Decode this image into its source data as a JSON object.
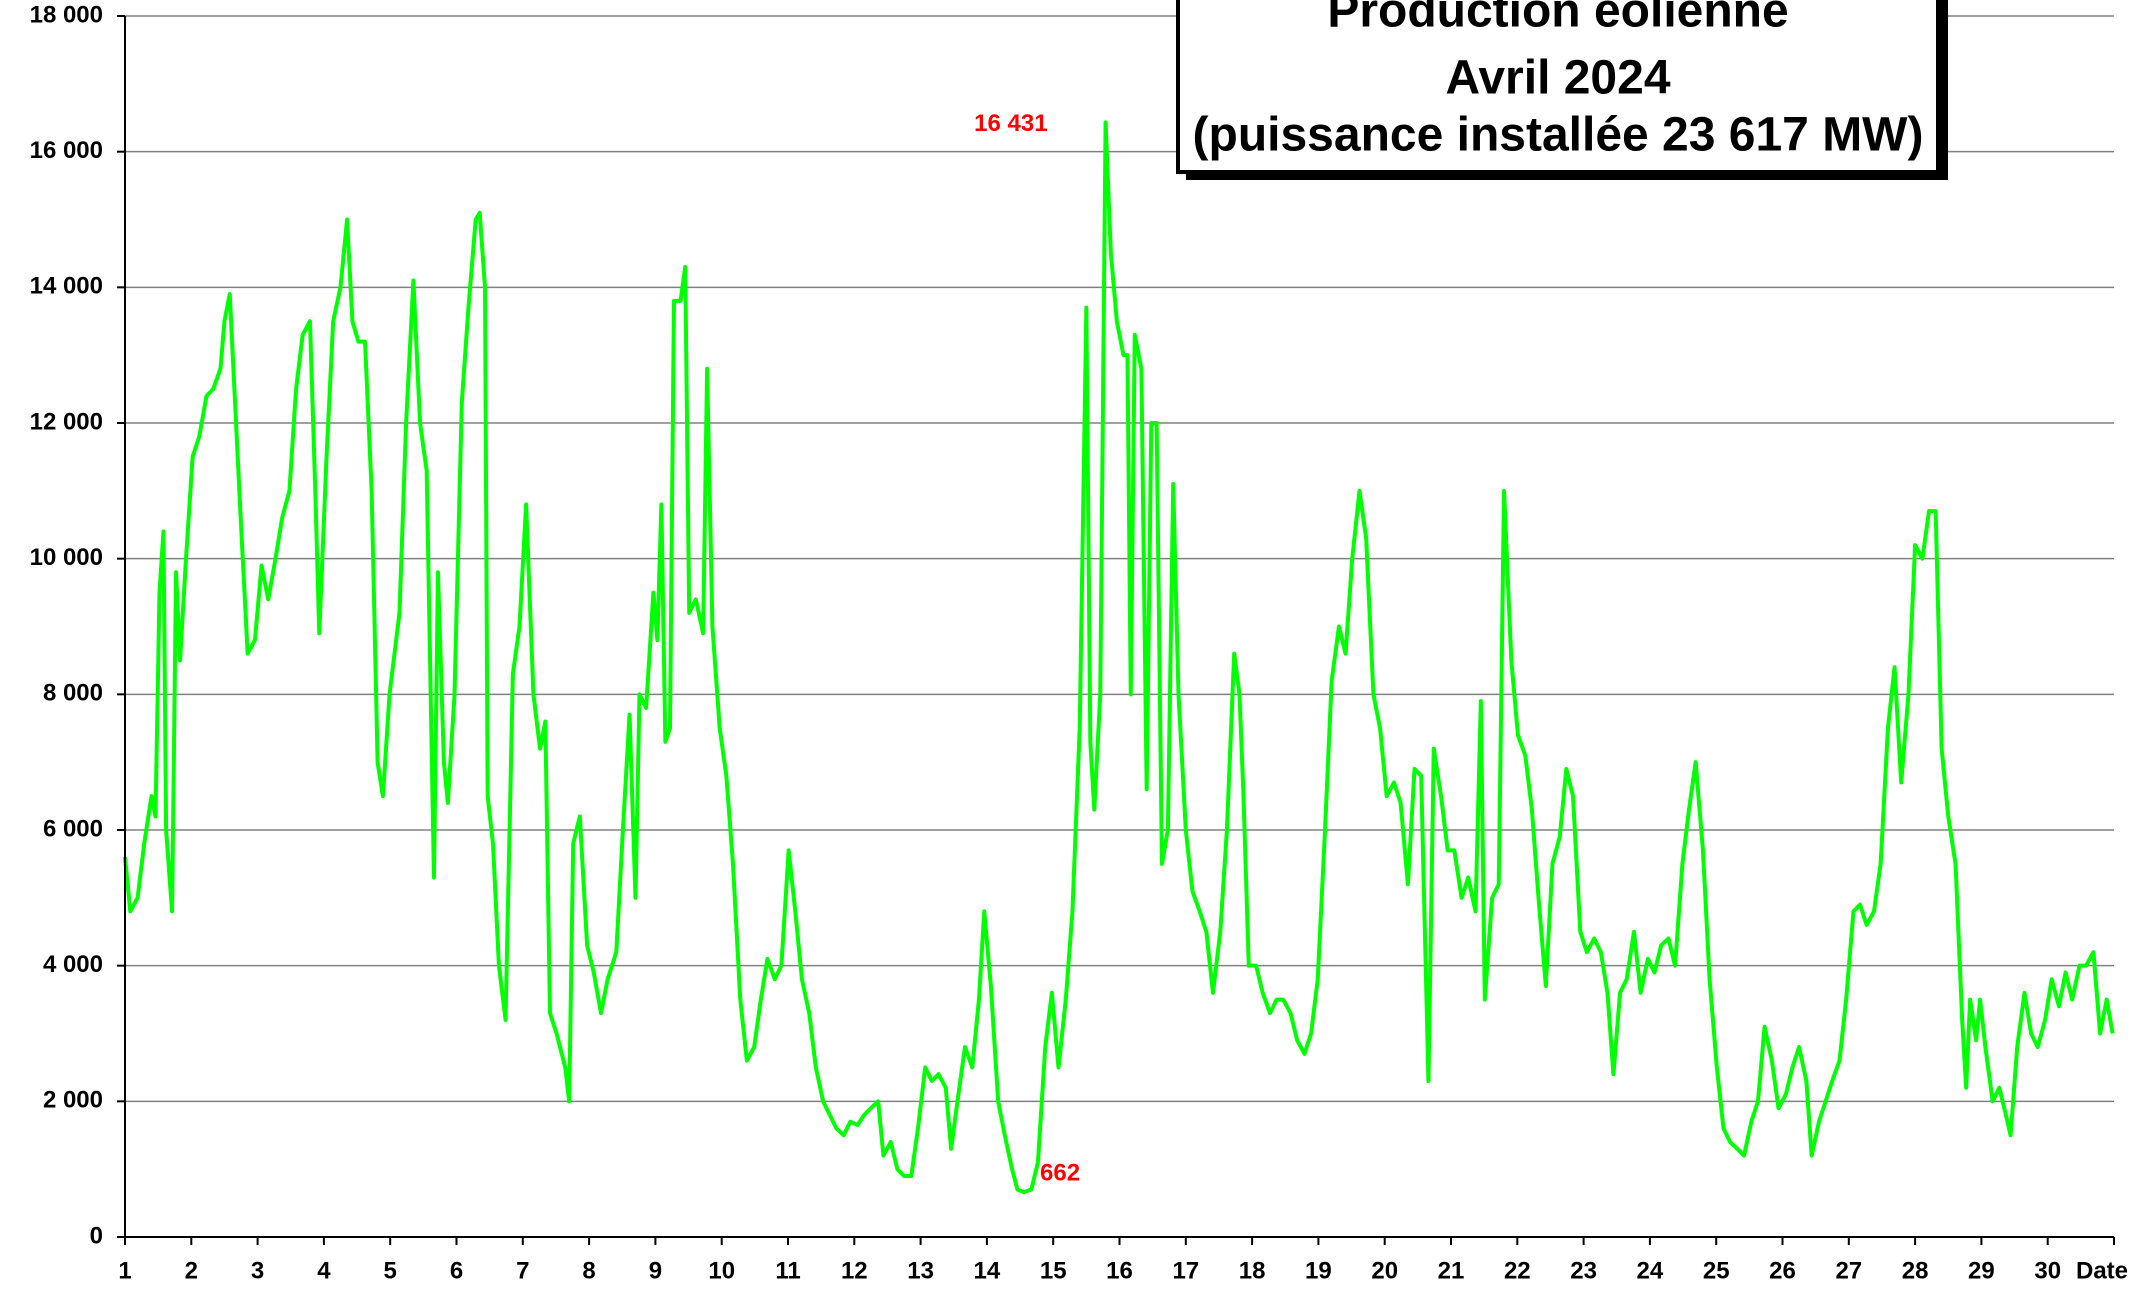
{
  "chart_data": {
    "type": "line",
    "title": [
      "Production éolienne",
      "Avril 2024",
      "(puissance installée 23 617 MW)"
    ],
    "x_label": "Date",
    "xlim": [
      1,
      31
    ],
    "xticks": [
      1,
      2,
      3,
      4,
      5,
      6,
      7,
      8,
      9,
      10,
      11,
      12,
      13,
      14,
      15,
      16,
      17,
      18,
      19,
      20,
      21,
      22,
      23,
      24,
      25,
      26,
      27,
      28,
      29,
      30
    ],
    "ylim": [
      0,
      18000
    ],
    "yticks": [
      {
        "value": 0,
        "label": "0"
      },
      {
        "value": 2000,
        "label": "2 000"
      },
      {
        "value": 4000,
        "label": "4 000"
      },
      {
        "value": 6000,
        "label": "6 000"
      },
      {
        "value": 8000,
        "label": "8 000"
      },
      {
        "value": 10000,
        "label": "10 000"
      },
      {
        "value": 12000,
        "label": "12 000"
      },
      {
        "value": 14000,
        "label": "14 000"
      },
      {
        "value": 16000,
        "label": "16 000"
      },
      {
        "value": 18000,
        "label": "18 000"
      }
    ],
    "grid": true,
    "annotations": [
      {
        "label": "16 431",
        "x": 15.79,
        "y": 16431
      },
      {
        "label": "662",
        "x": 14.56,
        "y": 662
      }
    ],
    "series": [
      {
        "color": "#00ff00",
        "x": [
          1.0,
          1.08,
          1.19,
          1.29,
          1.4,
          1.46,
          1.52,
          1.58,
          1.62,
          1.71,
          1.77,
          1.83,
          1.92,
          2.02,
          2.12,
          2.23,
          2.33,
          2.44,
          2.5,
          2.58,
          2.64,
          2.75,
          2.85,
          2.96,
          3.06,
          3.16,
          3.27,
          3.37,
          3.48,
          3.58,
          3.68,
          3.79,
          3.87,
          3.93,
          4.04,
          4.14,
          4.25,
          4.35,
          4.43,
          4.52,
          4.62,
          4.72,
          4.81,
          4.89,
          4.99,
          5.14,
          5.24,
          5.35,
          5.45,
          5.55,
          5.66,
          5.72,
          5.81,
          5.87,
          5.97,
          6.08,
          6.18,
          6.29,
          6.35,
          6.43,
          6.47,
          6.55,
          6.64,
          6.74,
          6.85,
          6.95,
          7.05,
          7.16,
          7.26,
          7.34,
          7.41,
          7.51,
          7.64,
          7.7,
          7.76,
          7.86,
          7.97,
          8.07,
          8.18,
          8.28,
          8.41,
          8.51,
          8.61,
          8.7,
          8.76,
          8.86,
          8.97,
          9.03,
          9.09,
          9.15,
          9.22,
          9.28,
          9.38,
          9.45,
          9.51,
          9.61,
          9.72,
          9.78,
          9.86,
          9.97,
          10.07,
          10.17,
          10.28,
          10.38,
          10.49,
          10.59,
          10.69,
          10.8,
          10.9,
          11.01,
          11.11,
          11.21,
          11.32,
          11.42,
          11.53,
          11.63,
          11.73,
          11.84,
          11.94,
          12.05,
          12.15,
          12.25,
          12.36,
          12.44,
          12.55,
          12.65,
          12.75,
          12.86,
          12.96,
          13.07,
          13.17,
          13.27,
          13.38,
          13.46,
          13.57,
          13.67,
          13.78,
          13.88,
          13.96,
          14.06,
          14.17,
          14.27,
          14.38,
          14.46,
          14.56,
          14.67,
          14.77,
          14.88,
          14.98,
          15.08,
          15.19,
          15.29,
          15.4,
          15.5,
          15.56,
          15.62,
          15.71,
          15.79,
          15.87,
          15.96,
          16.06,
          16.12,
          16.17,
          16.23,
          16.33,
          16.41,
          16.48,
          16.56,
          16.64,
          16.73,
          16.81,
          16.89,
          17.0,
          17.1,
          17.21,
          17.31,
          17.41,
          17.52,
          17.62,
          17.73,
          17.81,
          17.87,
          17.95,
          18.06,
          18.16,
          18.27,
          18.37,
          18.47,
          18.58,
          18.68,
          18.79,
          18.89,
          18.99,
          19.1,
          19.2,
          19.31,
          19.41,
          19.51,
          19.62,
          19.72,
          19.83,
          19.93,
          20.03,
          20.14,
          20.24,
          20.35,
          20.45,
          20.55,
          20.66,
          20.74,
          20.85,
          20.95,
          21.05,
          21.16,
          21.26,
          21.37,
          21.45,
          21.51,
          21.62,
          21.72,
          21.8,
          21.91,
          22.01,
          22.12,
          22.22,
          22.32,
          22.43,
          22.53,
          22.64,
          22.74,
          22.84,
          22.95,
          23.05,
          23.16,
          23.26,
          23.36,
          23.45,
          23.55,
          23.65,
          23.76,
          23.86,
          23.97,
          24.07,
          24.17,
          24.28,
          24.38,
          24.49,
          24.59,
          24.69,
          24.8,
          24.9,
          25.01,
          25.11,
          25.21,
          25.32,
          25.42,
          25.53,
          25.63,
          25.73,
          25.84,
          25.94,
          26.05,
          26.15,
          26.25,
          26.36,
          26.44,
          26.55,
          26.65,
          26.75,
          26.86,
          26.96,
          27.07,
          27.17,
          27.27,
          27.38,
          27.48,
          27.59,
          27.69,
          27.79,
          27.9,
          28.0,
          28.11,
          28.21,
          28.31,
          28.4,
          28.5,
          28.61,
          28.71,
          28.77,
          28.83,
          28.92,
          28.98,
          29.06,
          29.17,
          29.27,
          29.37,
          29.44,
          29.54,
          29.65,
          29.75,
          29.85,
          29.96,
          30.06,
          30.17,
          30.27,
          30.37,
          30.48,
          30.58,
          30.69,
          30.79,
          30.89,
          30.98
        ],
        "values": [
          5600,
          4800,
          5000,
          5800,
          6500,
          6200,
          9500,
          10400,
          6000,
          4800,
          9800,
          8500,
          10000,
          11500,
          11800,
          12400,
          12500,
          12800,
          13500,
          13900,
          12700,
          10500,
          8600,
          8800,
          9900,
          9400,
          10000,
          10600,
          11000,
          12500,
          13300,
          13500,
          11000,
          8900,
          11500,
          13500,
          14000,
          15000,
          13500,
          13200,
          13200,
          11000,
          7000,
          6500,
          8000,
          9200,
          12000,
          14100,
          12000,
          11300,
          5300,
          9800,
          7000,
          6400,
          8000,
          12300,
          13700,
          15000,
          15100,
          14000,
          6500,
          5800,
          4000,
          3200,
          8300,
          9000,
          10800,
          8000,
          7200,
          7600,
          3300,
          3000,
          2500,
          2000,
          5800,
          6200,
          4300,
          3900,
          3300,
          3800,
          4200,
          6000,
          7700,
          5000,
          8000,
          7800,
          9500,
          8800,
          10800,
          7300,
          7500,
          13800,
          13800,
          14300,
          9200,
          9400,
          8900,
          12800,
          9000,
          7500,
          6800,
          5500,
          3500,
          2600,
          2800,
          3500,
          4100,
          3800,
          4000,
          5700,
          4800,
          3800,
          3300,
          2500,
          2000,
          1800,
          1600,
          1500,
          1700,
          1650,
          1800,
          1900,
          2000,
          1200,
          1400,
          1000,
          900,
          900,
          1600,
          2500,
          2300,
          2400,
          2200,
          1300,
          2100,
          2800,
          2500,
          3500,
          4800,
          3700,
          2000,
          1500,
          1000,
          700,
          662,
          700,
          1100,
          2800,
          3600,
          2500,
          3500,
          4800,
          7500,
          13700,
          7300,
          6300,
          8000,
          16431,
          14500,
          13500,
          13000,
          13000,
          8000,
          13300,
          12800,
          6600,
          12000,
          12000,
          5500,
          6000,
          11100,
          8000,
          6000,
          5100,
          4800,
          4500,
          3600,
          4500,
          6000,
          8600,
          8000,
          6500,
          4000,
          4000,
          3600,
          3300,
          3500,
          3500,
          3300,
          2900,
          2700,
          3000,
          3800,
          6000,
          8200,
          9000,
          8600,
          10000,
          11000,
          10300,
          8000,
          7500,
          6500,
          6700,
          6400,
          5200,
          6900,
          6800,
          2300,
          7200,
          6500,
          5700,
          5700,
          5000,
          5300,
          4800,
          7900,
          3500,
          5000,
          5200,
          11000,
          8500,
          7400,
          7100,
          6300,
          5000,
          3700,
          5500,
          5900,
          6900,
          6500,
          4500,
          4200,
          4400,
          4200,
          3600,
          2400,
          3600,
          3800,
          4500,
          3600,
          4100,
          3900,
          4300,
          4400,
          4000,
          5500,
          6300,
          7000,
          5700,
          3800,
          2500,
          1600,
          1400,
          1300,
          1200,
          1700,
          2000,
          3100,
          2600,
          1900,
          2100,
          2500,
          2800,
          2300,
          1200,
          1700,
          2000,
          2300,
          2600,
          3500,
          4800,
          4900,
          4600,
          4800,
          5500,
          7500,
          8400,
          6700,
          8000,
          10200,
          10000,
          10700,
          10700,
          7200,
          6200,
          5500,
          3200,
          2200,
          3500,
          2900,
          3500,
          2800,
          2000,
          2200,
          1800,
          1500,
          2800,
          3600,
          3000,
          2800,
          3200,
          3800,
          3400,
          3900,
          3500,
          4000,
          4000,
          4200,
          3000,
          3500,
          3000
        ]
      }
    ]
  }
}
